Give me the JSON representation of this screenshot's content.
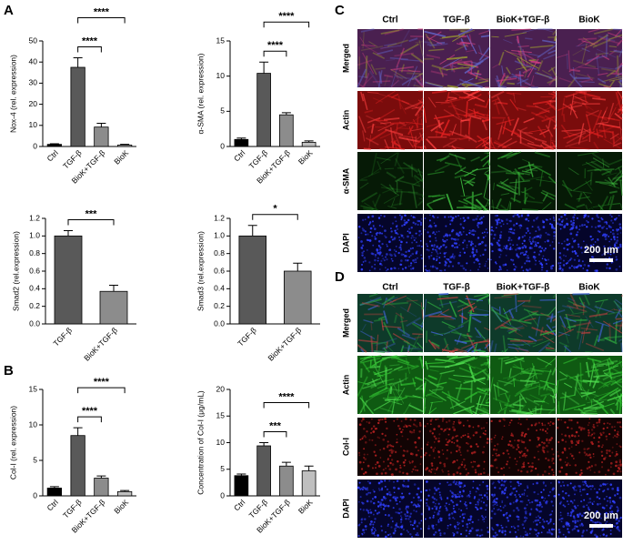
{
  "panel_labels": [
    "A",
    "B",
    "C",
    "D"
  ],
  "chart_data": [
    {
      "type": "bar",
      "y_label": "Nox-4 (rel. expression)",
      "categories": [
        "Ctrl",
        "TGF-β",
        "BioK+TGF-β",
        "BioK"
      ],
      "values": [
        1,
        37.5,
        9.2,
        0.7
      ],
      "errors": [
        0.3,
        4.5,
        1.8,
        0.3
      ],
      "colors": [
        "#000000",
        "#595959",
        "#8c8c8c",
        "#bfbfbf"
      ],
      "ylim": [
        0,
        50
      ],
      "yticks": [
        0,
        10,
        20,
        30,
        40,
        50
      ],
      "brackets": [
        {
          "from": 1,
          "to": 2,
          "label": "****"
        },
        {
          "from": 1,
          "to": 3,
          "label": "****"
        }
      ]
    },
    {
      "type": "bar",
      "y_label": "α-SMA (rel. expression)",
      "categories": [
        "Ctrl",
        "TGF-β",
        "BioK+TGF-β",
        "BioK"
      ],
      "values": [
        1,
        10.4,
        4.5,
        0.6
      ],
      "errors": [
        0.2,
        1.6,
        0.3,
        0.2
      ],
      "colors": [
        "#000000",
        "#595959",
        "#8c8c8c",
        "#bfbfbf"
      ],
      "ylim": [
        0,
        15
      ],
      "yticks": [
        0,
        5,
        10,
        15
      ],
      "brackets": [
        {
          "from": 1,
          "to": 2,
          "label": "****"
        },
        {
          "from": 1,
          "to": 3,
          "label": "****"
        }
      ]
    },
    {
      "type": "bar",
      "y_label": "Smad2 (rel.expression)",
      "categories": [
        "TGF-β",
        "BioK+TGF-β"
      ],
      "values": [
        1.0,
        0.37
      ],
      "errors": [
        0.06,
        0.07
      ],
      "colors": [
        "#595959",
        "#8c8c8c"
      ],
      "ylim": [
        0,
        1.2
      ],
      "yticks": [
        {
          "value": 0,
          "label": "0.0"
        },
        0.2,
        0.4,
        0.6,
        0.8,
        {
          "value": 1,
          "label": "1.0"
        },
        1.2
      ],
      "brackets": [
        {
          "from": 0,
          "to": 1,
          "label": "***"
        }
      ]
    },
    {
      "type": "bar",
      "y_label": "Smad3 (rel.expression)",
      "categories": [
        "TGF-β",
        "BioK+TGF-β"
      ],
      "values": [
        1.0,
        0.6
      ],
      "errors": [
        0.12,
        0.09
      ],
      "colors": [
        "#595959",
        "#8c8c8c"
      ],
      "ylim": [
        0,
        1.2
      ],
      "yticks": [
        {
          "value": 0,
          "label": "0.0"
        },
        0.2,
        0.4,
        0.6,
        0.8,
        {
          "value": 1,
          "label": "1.0"
        },
        1.2
      ],
      "brackets": [
        {
          "from": 0,
          "to": 1,
          "label": "*"
        }
      ]
    },
    {
      "type": "bar",
      "y_label": "Col-I (rel. expression)",
      "categories": [
        "Ctrl",
        "TGF-β",
        "BioK+TGF-β",
        "BioK"
      ],
      "values": [
        1.1,
        8.5,
        2.5,
        0.6
      ],
      "errors": [
        0.2,
        1.1,
        0.3,
        0.15
      ],
      "colors": [
        "#000000",
        "#595959",
        "#8c8c8c",
        "#bfbfbf"
      ],
      "ylim": [
        0,
        15
      ],
      "yticks": [
        0,
        5,
        10,
        15
      ],
      "brackets": [
        {
          "from": 1,
          "to": 2,
          "label": "****"
        },
        {
          "from": 1,
          "to": 3,
          "label": "****"
        }
      ]
    },
    {
      "type": "bar",
      "y_label": "Concentration of Col-I (μg/mL)",
      "categories": [
        "Ctrl",
        "TGF-β",
        "BioK+TGF-β",
        "BioK"
      ],
      "values": [
        3.8,
        9.4,
        5.6,
        4.7
      ],
      "errors": [
        0.3,
        0.6,
        0.7,
        0.9
      ],
      "colors": [
        "#000000",
        "#595959",
        "#8c8c8c",
        "#bfbfbf"
      ],
      "ylim": [
        0,
        20
      ],
      "yticks": [
        0,
        5,
        10,
        15,
        20
      ],
      "brackets": [
        {
          "from": 1,
          "to": 2,
          "label": "***"
        },
        {
          "from": 1,
          "to": 3,
          "label": "****"
        }
      ]
    }
  ],
  "micrographs": [
    {
      "columns": [
        "Ctrl",
        "TGF-β",
        "BioK+TGF-β",
        "BioK"
      ],
      "rows": [
        "Merged",
        "Actin",
        "α-SMA",
        "DAPI"
      ],
      "scale_bar": "200 μm"
    },
    {
      "columns": [
        "Ctrl",
        "TGF-β",
        "BioK+TGF-β",
        "BioK"
      ],
      "rows": [
        "Merged",
        "Actin",
        "Col-I",
        "DAPI"
      ],
      "scale_bar": "200 μm"
    }
  ]
}
